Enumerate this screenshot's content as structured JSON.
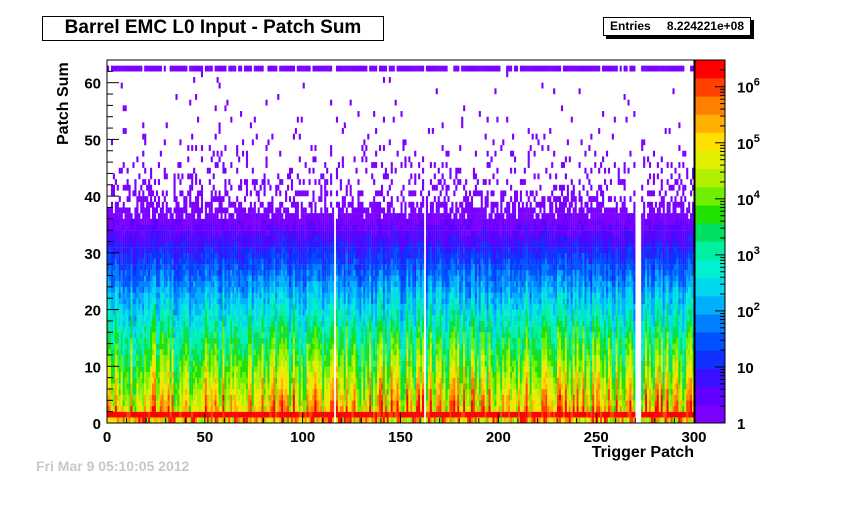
{
  "chart_data": {
    "type": "heatmap",
    "title": "Barrel EMC L0 Input - Patch Sum",
    "xlabel": "Trigger Patch",
    "ylabel": "Patch Sum",
    "xlim": [
      0,
      300
    ],
    "ylim": [
      0,
      64
    ],
    "x_ticks": [
      0,
      50,
      100,
      150,
      200,
      250,
      300
    ],
    "y_ticks": [
      0,
      10,
      20,
      30,
      40,
      50,
      60
    ],
    "z_scale": "log",
    "zlim": [
      1,
      3000000
    ],
    "colorbar_ticks": [
      {
        "label": "1",
        "value": 1
      },
      {
        "label": "10",
        "value": 10
      },
      {
        "label": "10",
        "exp": "2",
        "value": 100
      },
      {
        "label": "10",
        "exp": "3",
        "value": 1000
      },
      {
        "label": "10",
        "exp": "4",
        "value": 10000
      },
      {
        "label": "10",
        "exp": "5",
        "value": 100000
      },
      {
        "label": "10",
        "exp": "6",
        "value": 1000000
      }
    ],
    "stats": {
      "label": "Entries",
      "value": "8.224221e+08"
    },
    "empty_patches": [
      116,
      162,
      270,
      271,
      272
    ],
    "grid": false
  },
  "colors": {
    "palette": [
      "#7a00ff",
      "#6000ff",
      "#3a10ff",
      "#1030ff",
      "#0050ff",
      "#0080ff",
      "#00b0ff",
      "#00d8f0",
      "#00f0d0",
      "#00f0a0",
      "#00e060",
      "#20e000",
      "#70f000",
      "#b0f000",
      "#e0f000",
      "#ffe000",
      "#ffb000",
      "#ff8000",
      "#ff4000",
      "#ff0000"
    ]
  },
  "footer": "Fri Mar  9 05:10:05 2012"
}
